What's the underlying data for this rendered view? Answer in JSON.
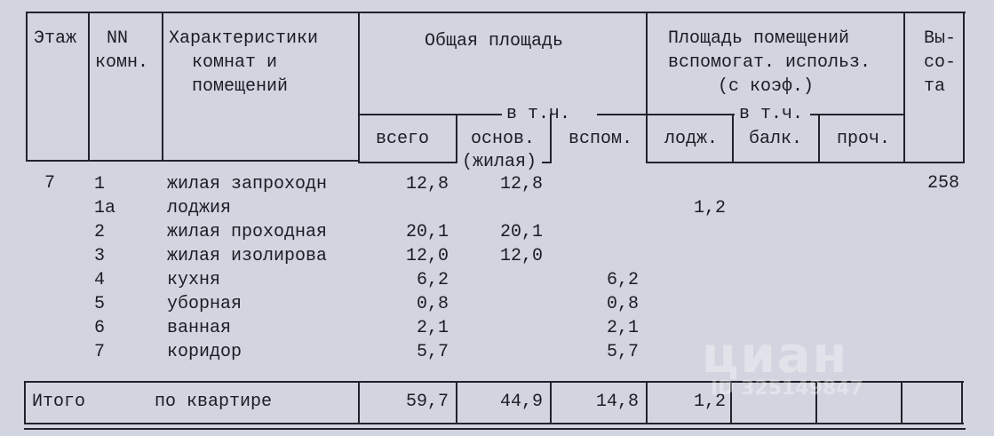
{
  "headers": {
    "floor": "Этаж",
    "room_no": [
      "NN",
      "комн."
    ],
    "characteristics": [
      "Характеристики",
      "комнат и",
      "помещений"
    ],
    "total_area": "Общая площадь",
    "incl": "в т.ч.",
    "total": "всего",
    "main": "основ.",
    "living": "(жилая)",
    "aux": "вспом.",
    "aux_area": [
      "Площадь помещений",
      "вспомогат. использ.",
      "(с коэф.)"
    ],
    "incl2": "в т.ч.",
    "loggia": "лодж.",
    "balcony": "балк.",
    "other": "проч.",
    "height": [
      "Вы-",
      "со-",
      "та"
    ]
  },
  "floor": "7",
  "height": "258",
  "rows": [
    {
      "no": "1",
      "name": "жилая запроходн",
      "total": "12,8",
      "main": "12,8",
      "aux": "",
      "loggia": ""
    },
    {
      "no": "1а",
      "name": "лоджия",
      "total": "",
      "main": "",
      "aux": "",
      "loggia": "1,2"
    },
    {
      "no": "2",
      "name": "жилая проходная",
      "total": "20,1",
      "main": "20,1",
      "aux": "",
      "loggia": ""
    },
    {
      "no": "3",
      "name": "жилая изолирова",
      "total": "12,0",
      "main": "12,0",
      "aux": "",
      "loggia": ""
    },
    {
      "no": "4",
      "name": "кухня",
      "total": "6,2",
      "main": "",
      "aux": "6,2",
      "loggia": ""
    },
    {
      "no": "5",
      "name": "уборная",
      "total": "0,8",
      "main": "",
      "aux": "0,8",
      "loggia": ""
    },
    {
      "no": "6",
      "name": "ванная",
      "total": "2,1",
      "main": "",
      "aux": "2,1",
      "loggia": ""
    },
    {
      "no": "7",
      "name": "коридор",
      "total": "5,7",
      "main": "",
      "aux": "5,7",
      "loggia": ""
    }
  ],
  "summary": {
    "label": "Итого",
    "label2": "по квартире",
    "total": "59,7",
    "main": "44,9",
    "aux": "14,8",
    "loggia": "1,2"
  },
  "watermark": {
    "logo": "циан",
    "id": "ID 325149847"
  }
}
